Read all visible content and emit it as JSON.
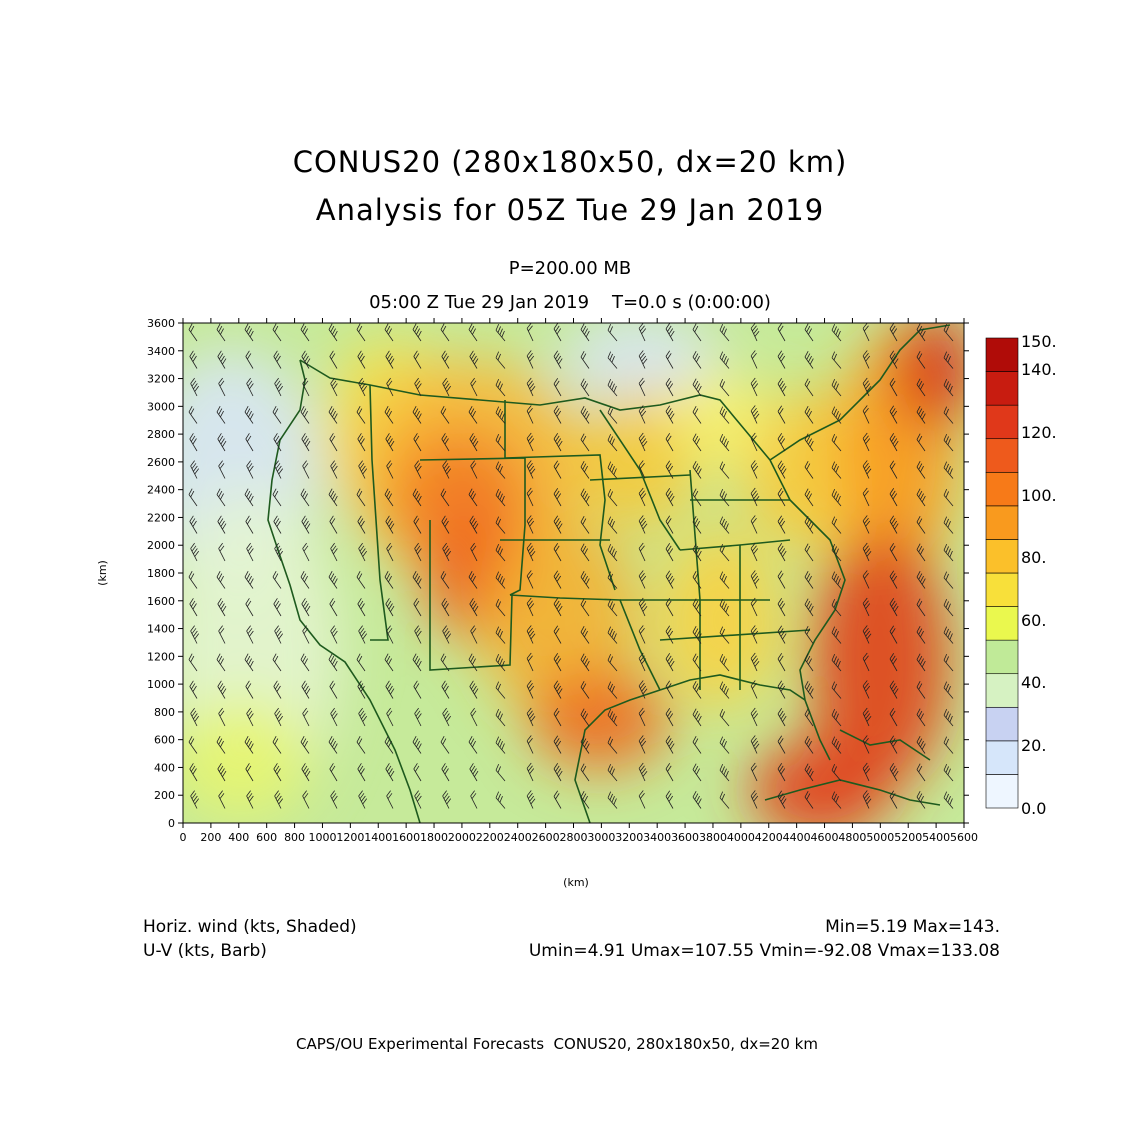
{
  "header": {
    "title": "CONUS20 (280x180x50, dx=20 km)",
    "subtitle": "Analysis for 05Z Tue 29 Jan 2019",
    "level": "P=200.00 MB",
    "time": "05:00 Z Tue 29 Jan 2019    T=0.0 s (0:00:00)"
  },
  "legend": {
    "field1": "Horiz. wind (kts, Shaded)",
    "field2": "U-V (kts, Barb)",
    "minmax": "Min=5.19 Max=143.",
    "uv_stats": "Umin=4.91 Umax=107.55 Vmin=-92.08 Vmax=133.08"
  },
  "footer": "CAPS/OU Experimental Forecasts  CONUS20, 280x180x50, dx=20 km",
  "axes": {
    "x_label": "(km)",
    "y_label": "(km)",
    "x_ticks": [
      "0",
      "200",
      "400",
      "600",
      "800",
      "1000",
      "1200",
      "1400",
      "1600",
      "1800",
      "2000",
      "2200",
      "2400",
      "2600",
      "2800",
      "3000",
      "3200",
      "3400",
      "3600",
      "3800",
      "4000",
      "4200",
      "4400",
      "4600",
      "4800",
      "5000",
      "5200",
      "5400",
      "5600"
    ],
    "y_ticks": [
      "0",
      "200",
      "400",
      "600",
      "800",
      "1000",
      "1200",
      "1400",
      "1600",
      "1800",
      "2000",
      "2200",
      "2400",
      "2600",
      "2800",
      "3000",
      "3200",
      "3400",
      "3600"
    ],
    "x_range": [
      0,
      5600
    ],
    "y_range": [
      0,
      3600
    ]
  },
  "colorbar": {
    "labels": [
      "0.0",
      "20.",
      "40.",
      "60.",
      "80.",
      "100.",
      "120.",
      "140.",
      "150."
    ],
    "colors": [
      "#eef6ff",
      "#d6e6fa",
      "#c8d2f2",
      "#d6f2c2",
      "#c0ea98",
      "#eaf84e",
      "#f8e03a",
      "#fbc02a",
      "#f99a1e",
      "#f77a18",
      "#ee5a1c",
      "#e0381a",
      "#c81c10",
      "#b00c08"
    ]
  },
  "colors": {
    "coastline": "#1e5a1e",
    "barb": "#222222"
  }
}
